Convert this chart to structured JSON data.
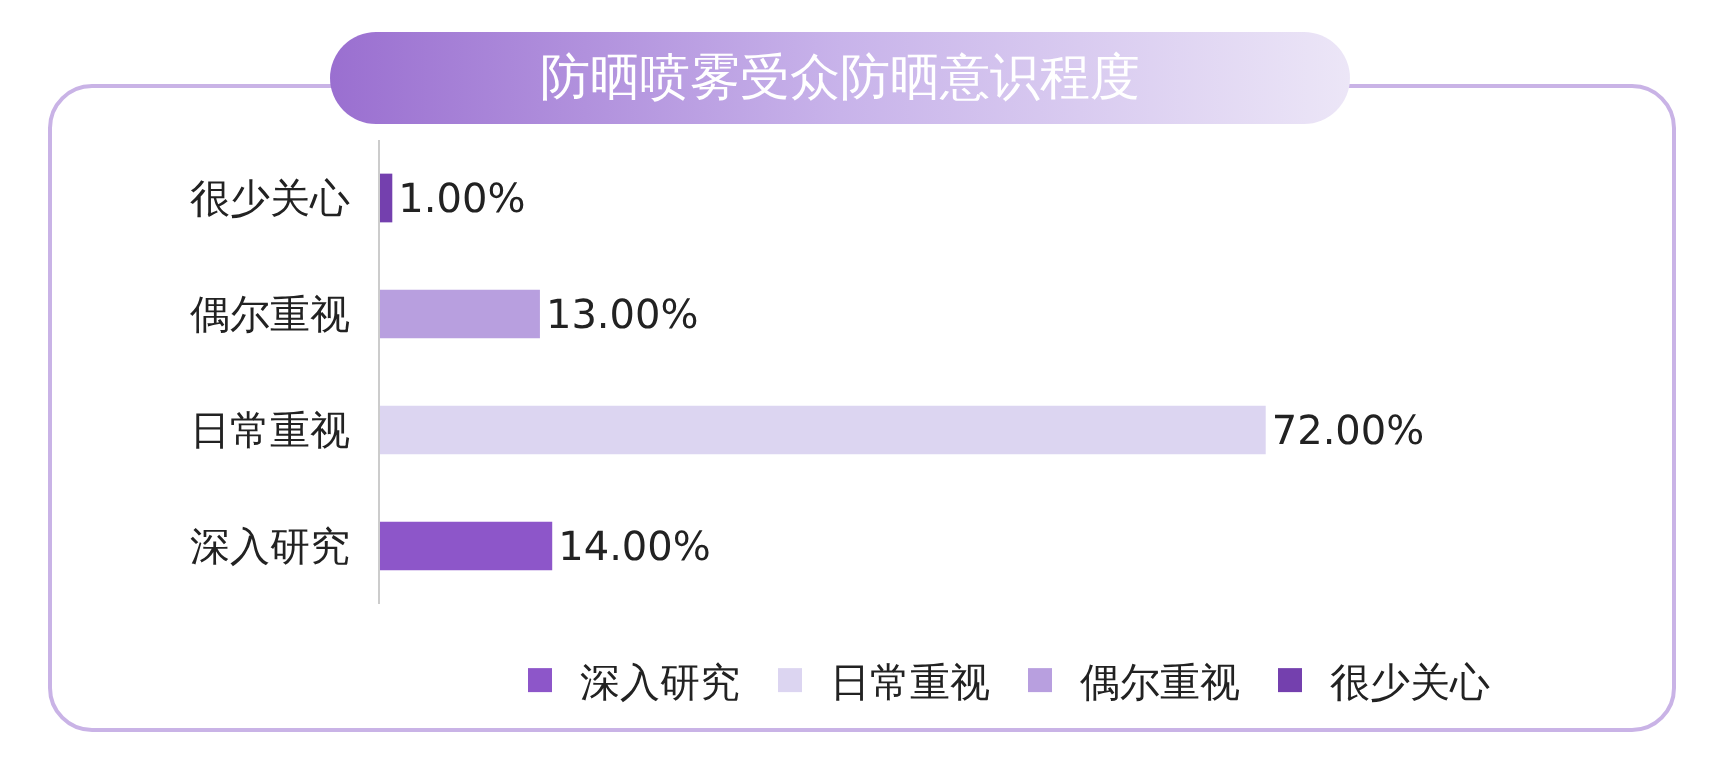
{
  "chart_data": {
    "type": "bar",
    "orientation": "horizontal",
    "title": "防晒喷雾受众防晒意识程度",
    "categories": [
      "很少关心",
      "偶尔重视",
      "日常重视",
      "深入研究"
    ],
    "series": [
      {
        "name": "深入研究",
        "color": "#8d56c9",
        "values": [
          null,
          null,
          null,
          14
        ],
        "value_labels": [
          null,
          null,
          null,
          "14.00%"
        ]
      },
      {
        "name": "日常重视",
        "color": "#dcd5f1",
        "values": [
          null,
          null,
          72,
          null
        ],
        "value_labels": [
          null,
          null,
          "72.00%",
          null
        ]
      },
      {
        "name": "偶尔重视",
        "color": "#b89fdf",
        "values": [
          null,
          13,
          null,
          null
        ],
        "value_labels": [
          null,
          "13.00%",
          null,
          null
        ]
      },
      {
        "name": "很少关心",
        "color": "#7440ae",
        "values": [
          1,
          null,
          null,
          null
        ],
        "value_labels": [
          "1.00%",
          null,
          null,
          null
        ]
      }
    ],
    "legend": "bottom",
    "grid": false,
    "tick_labels": "y"
  }
}
